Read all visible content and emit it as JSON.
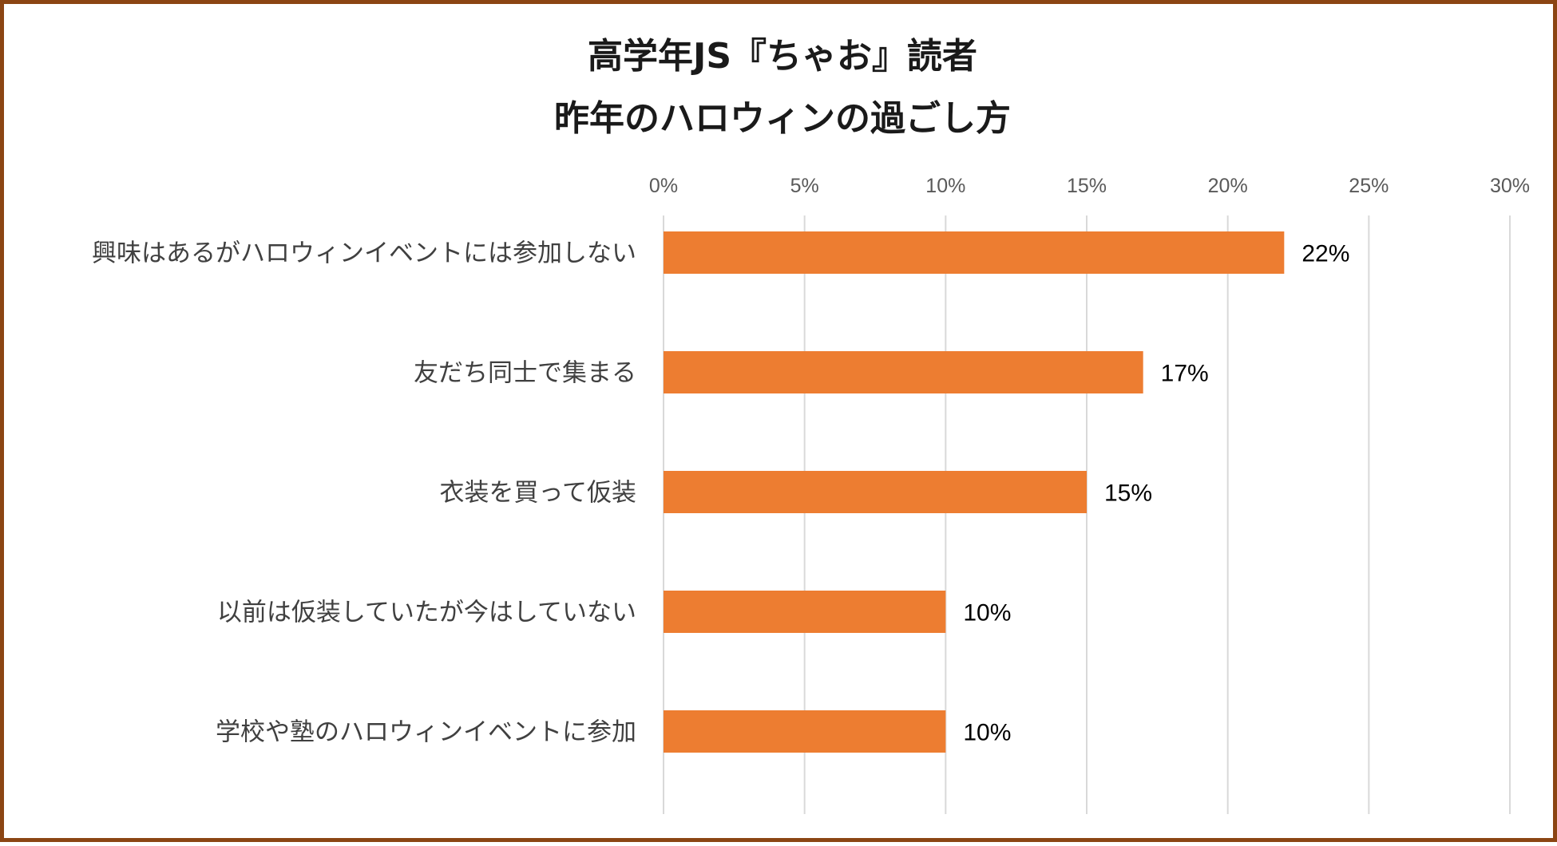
{
  "chart_data": {
    "type": "bar",
    "orientation": "horizontal",
    "title": [
      "高学年JS『ちゃお』読者",
      "昨年のハロウィンの過ごし方"
    ],
    "categories": [
      "興味はあるがハロウィンイベントには参加しない",
      "友だち同士で集まる",
      "衣装を買って仮装",
      "以前は仮装していたが今はしていない",
      "学校や塾のハロウィンイベントに参加"
    ],
    "values": [
      22,
      17,
      15,
      10,
      10
    ],
    "value_labels": [
      "22%",
      "17%",
      "15%",
      "10%",
      "10%"
    ],
    "xlim": [
      0,
      30
    ],
    "x_ticks": [
      0,
      5,
      10,
      15,
      20,
      25,
      30
    ],
    "x_tick_labels": [
      "0%",
      "5%",
      "10%",
      "15%",
      "20%",
      "25%",
      "30%"
    ],
    "x_axis_position": "top",
    "grid": true,
    "legend": "none",
    "bar_color": "#ed7d31",
    "border_color": "#8b4513"
  }
}
